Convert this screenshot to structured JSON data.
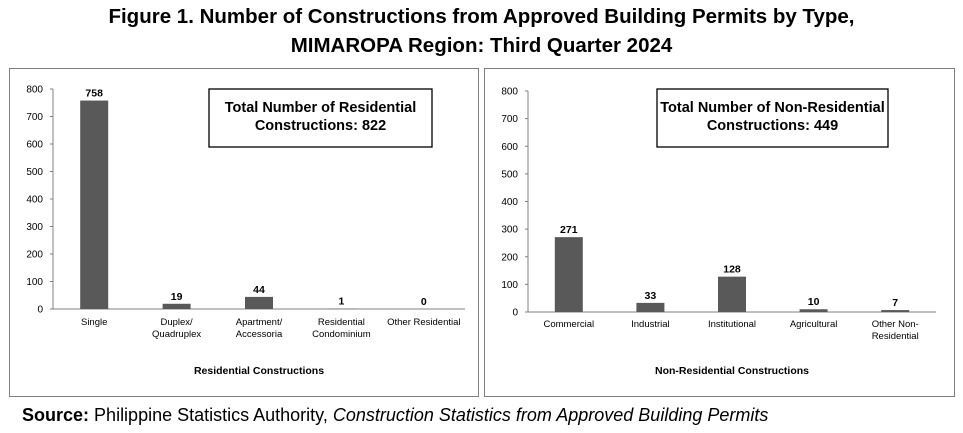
{
  "title_line1": "Figure 1. Number of Constructions from Approved Building Permits by Type,",
  "title_line2": "MIMAROPA Region: Third Quarter 2024",
  "source": {
    "label": "Source:",
    "agency": "Philippine Statistics Authority,",
    "publication": "Construction Statistics from Approved Building Permits"
  },
  "colors": {
    "bar": "#595959",
    "axis": "#808080",
    "border": "#7f7f7f"
  },
  "chart_data": [
    {
      "type": "bar",
      "categories": [
        [
          "Single"
        ],
        [
          "Duplex/",
          "Quadruplex"
        ],
        [
          "Apartment/",
          "Accessoria"
        ],
        [
          "Residential",
          "Condominium"
        ],
        [
          "Other Residential"
        ]
      ],
      "values": [
        758,
        19,
        44,
        1,
        0
      ],
      "xlabel": "Residential Constructions",
      "ylabel": "",
      "ylim": [
        0,
        800
      ],
      "yticks": [
        0,
        100,
        200,
        300,
        400,
        500,
        600,
        700,
        800
      ],
      "annotation": [
        "Total Number of Residential",
        "Constructions: 822"
      ],
      "grid": false,
      "legend": "none"
    },
    {
      "type": "bar",
      "categories": [
        [
          "Commercial"
        ],
        [
          "Industrial"
        ],
        [
          "Institutional"
        ],
        [
          "Agricultural"
        ],
        [
          "Other Non-",
          "Residential"
        ]
      ],
      "values": [
        271,
        33,
        128,
        10,
        7
      ],
      "xlabel": "Non-Residential Constructions",
      "ylabel": "",
      "ylim": [
        0,
        800
      ],
      "yticks": [
        0,
        100,
        200,
        300,
        400,
        500,
        600,
        700,
        800
      ],
      "annotation": [
        "Total Number of Non-Residential",
        "Constructions: 449"
      ],
      "grid": false,
      "legend": "none"
    }
  ]
}
